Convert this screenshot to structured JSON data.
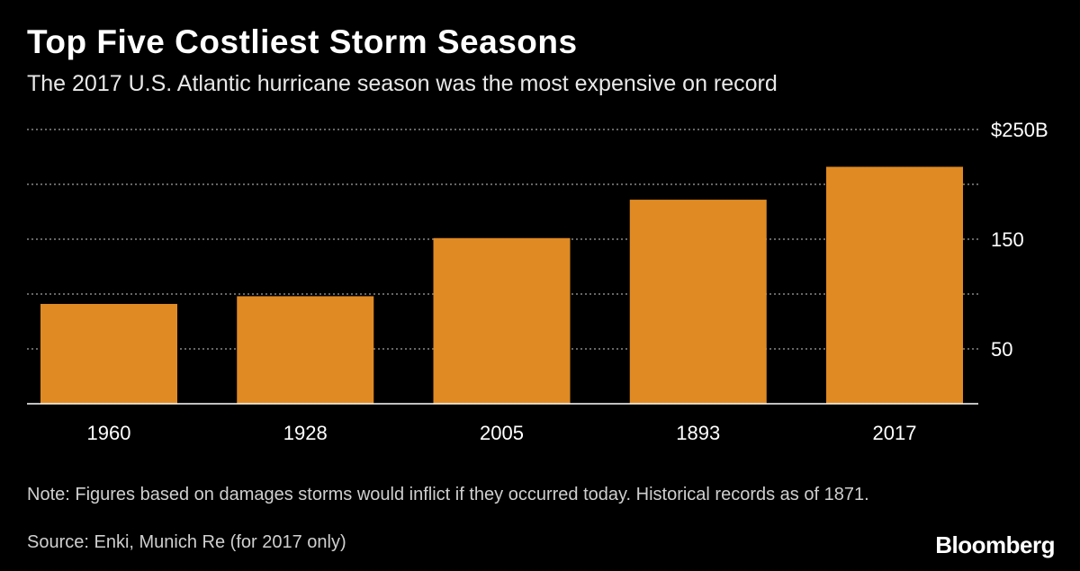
{
  "title": "Top Five Costliest Storm Seasons",
  "subtitle": "The 2017 U.S. Atlantic hurricane season was the most expensive on record",
  "note": "Note: Figures based on damages storms would inflict if they occurred today. Historical records as of 1871.",
  "source": "Source: Enki, Munich Re (for 2017 only)",
  "brand": "Bloomberg",
  "colors": {
    "bar": "#E08A23",
    "background": "#000000",
    "grid": "#888888",
    "text": "#FFFFFF"
  },
  "chart_data": {
    "type": "bar",
    "categories": [
      "1960",
      "1928",
      "2005",
      "1893",
      "2017"
    ],
    "values": [
      91,
      98,
      151,
      186,
      216
    ],
    "ylim": [
      0,
      250
    ],
    "yticks": [
      {
        "value": 250,
        "label": "$250B"
      },
      {
        "value": 200,
        "label": ""
      },
      {
        "value": 150,
        "label": "150"
      },
      {
        "value": 100,
        "label": ""
      },
      {
        "value": 50,
        "label": "50"
      }
    ],
    "grid": true,
    "grid_style": "dotted",
    "y_axis_position": "right"
  }
}
